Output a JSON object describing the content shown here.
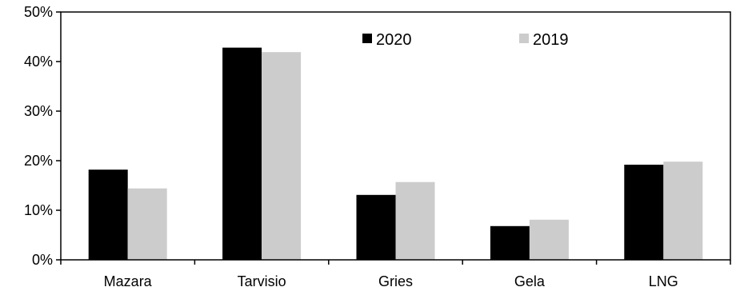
{
  "chart_data": {
    "type": "bar",
    "categories": [
      "Mazara",
      "Tarvisio",
      "Gries",
      "Gela",
      "LNG"
    ],
    "series": [
      {
        "name": "2020",
        "color": "#000000",
        "values": [
          18.2,
          42.8,
          13.1,
          6.8,
          19.2
        ]
      },
      {
        "name": "2019",
        "color": "#cccccc",
        "values": [
          14.4,
          41.9,
          15.7,
          8.1,
          19.8
        ]
      }
    ],
    "ylim": [
      0,
      50
    ],
    "yticks": [
      0,
      10,
      20,
      30,
      40,
      50
    ],
    "ytick_labels": [
      "0%",
      "10%",
      "20%",
      "30%",
      "40%",
      "50%"
    ],
    "title": "",
    "xlabel": "",
    "ylabel": "",
    "grid": false,
    "legend_position": "top-right"
  }
}
